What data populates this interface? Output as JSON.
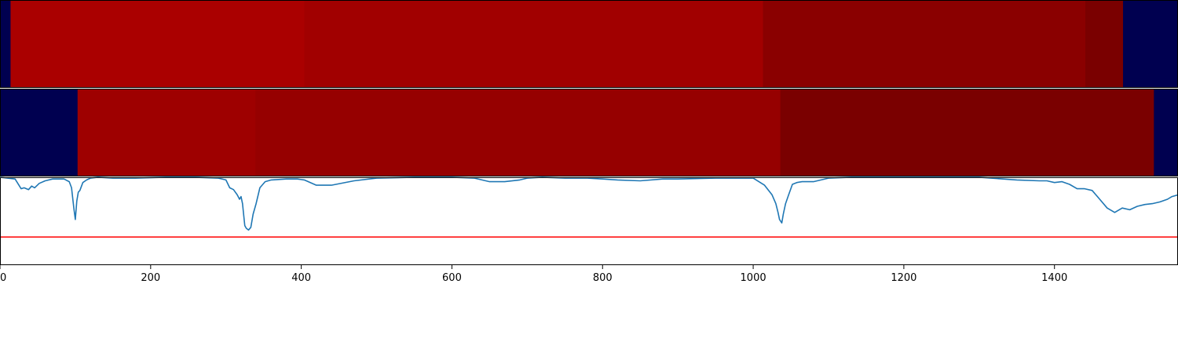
{
  "chart_data": [
    {
      "type": "heatmap",
      "panel": "top",
      "xlim": [
        0,
        1564
      ],
      "segments": [
        {
          "start": 0,
          "end": 14,
          "color": "#000050"
        },
        {
          "start": 14,
          "end": 404,
          "color": "#aa0000"
        },
        {
          "start": 404,
          "end": 1013,
          "color": "#a10000"
        },
        {
          "start": 1013,
          "end": 1441,
          "color": "#8a0000"
        },
        {
          "start": 1441,
          "end": 1491,
          "color": "#7a0000"
        },
        {
          "start": 1491,
          "end": 1564,
          "color": "#000050"
        }
      ]
    },
    {
      "type": "heatmap",
      "panel": "middle",
      "xlim": [
        0,
        1564
      ],
      "segments": [
        {
          "start": 0,
          "end": 103,
          "color": "#000050"
        },
        {
          "start": 103,
          "end": 339,
          "color": "#9e0000"
        },
        {
          "start": 339,
          "end": 1036,
          "color": "#960000"
        },
        {
          "start": 1036,
          "end": 1532,
          "color": "#7a0000"
        },
        {
          "start": 1532,
          "end": 1564,
          "color": "#000050"
        }
      ]
    },
    {
      "type": "line",
      "panel": "bottom",
      "xlim": [
        0,
        1564
      ],
      "ylim": [
        -1.0,
        0.0
      ],
      "grid": false,
      "line_color": "#1f77b4",
      "threshold": {
        "value": -0.68,
        "color": "#ff0000"
      },
      "x": [
        0,
        20,
        28,
        32,
        38,
        42,
        46,
        52,
        60,
        70,
        85,
        92,
        95,
        98,
        100,
        102,
        104,
        106,
        110,
        115,
        120,
        130,
        150,
        180,
        220,
        260,
        290,
        300,
        305,
        310,
        315,
        318,
        320,
        322,
        325,
        327,
        330,
        333,
        336,
        340,
        345,
        352,
        360,
        380,
        395,
        404,
        420,
        440,
        470,
        500,
        550,
        600,
        630,
        650,
        670,
        690,
        700,
        720,
        750,
        780,
        800,
        820,
        850,
        880,
        900,
        950,
        1000,
        1015,
        1025,
        1030,
        1033,
        1035,
        1038,
        1040,
        1043,
        1047,
        1052,
        1058,
        1065,
        1080,
        1100,
        1130,
        1150,
        1200,
        1250,
        1300,
        1350,
        1380,
        1390,
        1400,
        1410,
        1420,
        1430,
        1440,
        1450,
        1460,
        1470,
        1480,
        1490,
        1500,
        1510,
        1520,
        1530,
        1540,
        1550,
        1556,
        1564
      ],
      "y": [
        0.0,
        -0.02,
        -0.13,
        -0.12,
        -0.14,
        -0.1,
        -0.12,
        -0.07,
        -0.04,
        -0.02,
        -0.02,
        -0.05,
        -0.12,
        -0.35,
        -0.48,
        -0.27,
        -0.17,
        -0.15,
        -0.06,
        -0.03,
        -0.01,
        0.0,
        -0.01,
        -0.01,
        0.0,
        0.0,
        -0.01,
        -0.03,
        -0.12,
        -0.14,
        -0.2,
        -0.25,
        -0.22,
        -0.3,
        -0.55,
        -0.58,
        -0.6,
        -0.57,
        -0.42,
        -0.3,
        -0.12,
        -0.05,
        -0.03,
        -0.02,
        -0.02,
        -0.03,
        -0.09,
        -0.09,
        -0.04,
        -0.01,
        0.0,
        0.0,
        -0.01,
        -0.05,
        -0.05,
        -0.03,
        -0.01,
        0.0,
        -0.01,
        -0.01,
        -0.02,
        -0.03,
        -0.04,
        -0.02,
        -0.02,
        -0.01,
        -0.01,
        -0.09,
        -0.2,
        -0.3,
        -0.4,
        -0.48,
        -0.52,
        -0.42,
        -0.3,
        -0.2,
        -0.08,
        -0.06,
        -0.05,
        -0.05,
        -0.01,
        0.0,
        0.0,
        0.0,
        0.0,
        0.0,
        -0.03,
        -0.04,
        -0.04,
        -0.06,
        -0.05,
        -0.08,
        -0.13,
        -0.13,
        -0.15,
        -0.25,
        -0.35,
        -0.4,
        -0.35,
        -0.37,
        -0.33,
        -0.31,
        -0.3,
        -0.28,
        -0.25,
        -0.22,
        -0.2
      ],
      "xticks": [
        0,
        200,
        400,
        600,
        800,
        1000,
        1200,
        1400
      ],
      "xtick_labels": [
        "0",
        "200",
        "400",
        "600",
        "800",
        "1000",
        "1200",
        "1400"
      ]
    }
  ]
}
